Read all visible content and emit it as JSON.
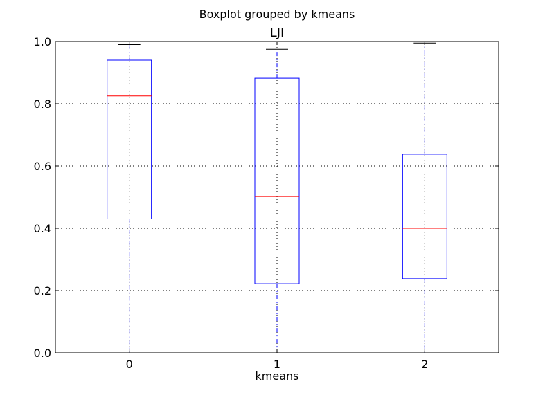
{
  "chart_data": {
    "type": "boxplot",
    "suptitle": "Boxplot grouped by kmeans",
    "title": "LJI",
    "xlabel": "kmeans",
    "ylabel": "",
    "categories": [
      "0",
      "1",
      "2"
    ],
    "ylim": [
      0.0,
      1.0
    ],
    "yticks": [
      "0.0",
      "0.2",
      "0.4",
      "0.6",
      "0.8",
      "1.0"
    ],
    "grid": true,
    "boxes": [
      {
        "category": "0",
        "whisker_low": 0.0,
        "q1": 0.43,
        "median": 0.825,
        "q3": 0.94,
        "whisker_high": 0.99
      },
      {
        "category": "1",
        "whisker_low": 0.0,
        "q1": 0.222,
        "median": 0.502,
        "q3": 0.882,
        "whisker_high": 0.975
      },
      {
        "category": "2",
        "whisker_low": 0.0,
        "q1": 0.238,
        "median": 0.4,
        "q3": 0.638,
        "whisker_high": 0.995
      }
    ],
    "colors": {
      "box": "#0000ff",
      "median": "#ff0000",
      "whisker": "#0000ff",
      "cap": "#000000",
      "grid": "#000000"
    }
  }
}
